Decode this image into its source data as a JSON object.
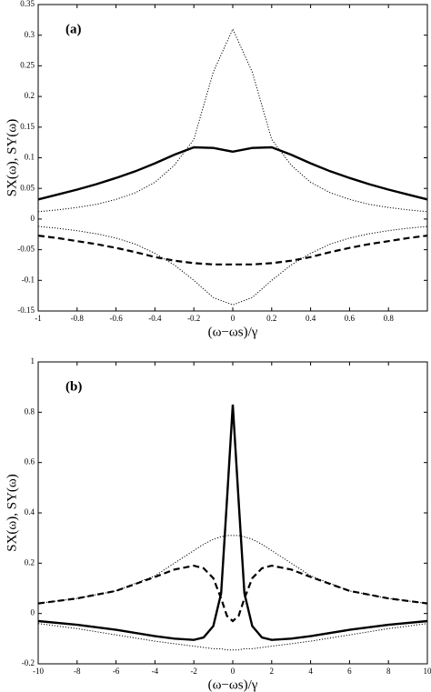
{
  "chart_data": [
    {
      "type": "line",
      "annotation": "(a)",
      "x_label": "(ω−ωs)/γ",
      "y_label": "SX(ω), SY(ω)",
      "x": [
        -1,
        -0.9,
        -0.8,
        -0.7,
        -0.6,
        -0.5,
        -0.4,
        -0.3,
        -0.2,
        -0.1,
        0,
        0.1,
        0.2,
        0.3,
        0.4,
        0.5,
        0.6,
        0.7,
        0.8,
        0.9,
        1
      ],
      "xlim": [
        -1,
        1
      ],
      "xticks": [
        -1,
        -0.8,
        -0.6,
        -0.4,
        -0.2,
        0,
        0.2,
        0.4,
        0.6,
        0.8
      ],
      "ylim": [
        -0.15,
        0.35
      ],
      "yticks": [
        -0.15,
        -0.1,
        -0.05,
        0,
        0.05,
        0.1,
        0.15,
        0.2,
        0.25,
        0.3,
        0.35
      ],
      "series": [
        {
          "color": "#000",
          "style": "solid",
          "values": [
            0.032,
            0.04,
            0.048,
            0.057,
            0.067,
            0.078,
            0.091,
            0.105,
            0.117,
            0.116,
            0.11,
            0.116,
            0.117,
            0.105,
            0.091,
            0.078,
            0.067,
            0.057,
            0.048,
            0.04,
            0.032
          ]
        },
        {
          "color": "#000",
          "style": "dotted",
          "values": [
            0.012,
            0.015,
            0.019,
            0.024,
            0.032,
            0.043,
            0.06,
            0.088,
            0.13,
            0.24,
            0.31,
            0.24,
            0.13,
            0.088,
            0.06,
            0.043,
            0.032,
            0.024,
            0.019,
            0.015,
            0.012
          ]
        },
        {
          "color": "#000",
          "style": "dotted",
          "values": [
            -0.012,
            -0.015,
            -0.019,
            -0.024,
            -0.031,
            -0.041,
            -0.056,
            -0.075,
            -0.1,
            -0.128,
            -0.14,
            -0.128,
            -0.1,
            -0.075,
            -0.056,
            -0.041,
            -0.031,
            -0.024,
            -0.019,
            -0.015,
            -0.012
          ]
        },
        {
          "color": "#000",
          "style": "dashed",
          "values": [
            -0.027,
            -0.031,
            -0.036,
            -0.041,
            -0.047,
            -0.054,
            -0.062,
            -0.068,
            -0.072,
            -0.074,
            -0.074,
            -0.074,
            -0.072,
            -0.068,
            -0.062,
            -0.054,
            -0.047,
            -0.041,
            -0.036,
            -0.031,
            -0.027
          ]
        }
      ]
    },
    {
      "type": "line",
      "annotation": "(b)",
      "x_label": "(ω−ωs)/γ",
      "y_label": "SX(ω), SY(ω)",
      "x": [
        -10,
        -8,
        -6,
        -4,
        -3,
        -2,
        -1.5,
        -1,
        -0.6,
        -0.3,
        0,
        0.3,
        0.6,
        1,
        1.5,
        2,
        3,
        4,
        6,
        8,
        10
      ],
      "xlim": [
        -10,
        10
      ],
      "xticks": [
        -10,
        -8,
        -6,
        -4,
        -2,
        0,
        2,
        4,
        6,
        8,
        10
      ],
      "ylim": [
        -0.2,
        1
      ],
      "yticks": [
        -0.2,
        0,
        0.2,
        0.4,
        0.6,
        0.8,
        1
      ],
      "series": [
        {
          "color": "#000",
          "style": "solid",
          "values": [
            -0.03,
            -0.045,
            -0.065,
            -0.09,
            -0.1,
            -0.105,
            -0.095,
            -0.05,
            0.08,
            0.45,
            0.83,
            0.45,
            0.08,
            -0.05,
            -0.095,
            -0.105,
            -0.1,
            -0.09,
            -0.065,
            -0.045,
            -0.03
          ]
        },
        {
          "color": "#000",
          "style": "dotted",
          "values": [
            0.04,
            0.06,
            0.09,
            0.15,
            0.2,
            0.25,
            0.275,
            0.295,
            0.305,
            0.31,
            0.31,
            0.31,
            0.305,
            0.295,
            0.275,
            0.25,
            0.2,
            0.15,
            0.09,
            0.06,
            0.04
          ]
        },
        {
          "color": "#000",
          "style": "dotted",
          "values": [
            -0.04,
            -0.06,
            -0.085,
            -0.11,
            -0.12,
            -0.13,
            -0.135,
            -0.14,
            -0.14,
            -0.145,
            -0.145,
            -0.145,
            -0.14,
            -0.14,
            -0.135,
            -0.13,
            -0.12,
            -0.11,
            -0.085,
            -0.06,
            -0.04
          ]
        },
        {
          "color": "#000",
          "style": "dashed",
          "values": [
            0.04,
            0.06,
            0.09,
            0.145,
            0.175,
            0.19,
            0.18,
            0.14,
            0.06,
            -0.01,
            -0.03,
            -0.01,
            0.06,
            0.14,
            0.18,
            0.19,
            0.175,
            0.145,
            0.09,
            0.06,
            0.04
          ]
        }
      ]
    }
  ]
}
